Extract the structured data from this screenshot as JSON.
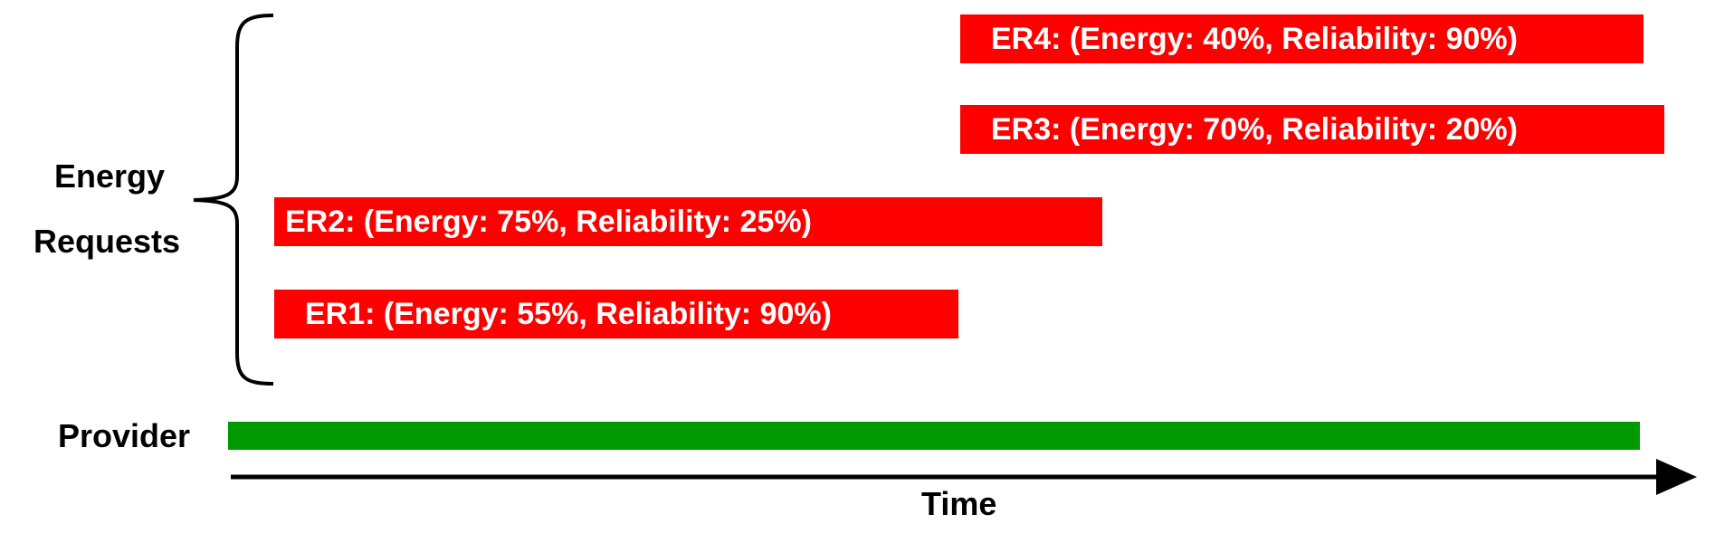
{
  "labels": {
    "group": [
      "Energy",
      "Requests"
    ],
    "provider": "Provider",
    "axis": "Time"
  },
  "requests": [
    {
      "id": "ER4",
      "text": "ER4: (Energy: 40%, Reliability: 90%)",
      "energy_pct": 40,
      "reliability_pct": 90
    },
    {
      "id": "ER3",
      "text": "ER3: (Energy: 70%, Reliability: 20%)",
      "energy_pct": 70,
      "reliability_pct": 20
    },
    {
      "id": "ER2",
      "text": "ER2: (Energy: 75%, Reliability: 25%)",
      "energy_pct": 75,
      "reliability_pct": 25
    },
    {
      "id": "ER1",
      "text": "ER1: (Energy: 55%, Reliability: 90%)",
      "energy_pct": 55,
      "reliability_pct": 90
    }
  ],
  "colors": {
    "request_bar": "#ff0000",
    "request_text": "#ffffff",
    "provider_bar": "#009900",
    "axis": "#000000"
  }
}
